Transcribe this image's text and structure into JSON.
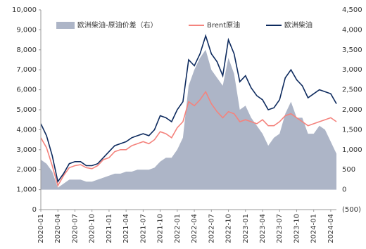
{
  "chart_data": {
    "type": "line",
    "categories": [
      "2020-01",
      null,
      null,
      "2020-04",
      null,
      null,
      "2020-07",
      null,
      null,
      "2020-10",
      null,
      null,
      "2021-01",
      null,
      null,
      "2021-04",
      null,
      null,
      "2021-07",
      null,
      null,
      "2021-10",
      null,
      null,
      "2022-01",
      null,
      null,
      "2022-04",
      null,
      null,
      "2022-07",
      null,
      null,
      "2022-10",
      null,
      null,
      "2023-01",
      null,
      null,
      "2023-04",
      null,
      null,
      "2023-07",
      null,
      null,
      "2023-10",
      null,
      null,
      "2024-01",
      null,
      null,
      "2024-04",
      null
    ],
    "series": [
      {
        "name": "欧洲柴油-原油价差（右）",
        "kind": "area",
        "axis": "y2",
        "color": "#adb5c7",
        "values": [
          750,
          650,
          450,
          50,
          150,
          250,
          250,
          250,
          200,
          200,
          250,
          300,
          350,
          400,
          400,
          450,
          450,
          500,
          500,
          500,
          550,
          700,
          800,
          800,
          1000,
          1300,
          2600,
          3000,
          3300,
          3500,
          3000,
          2800,
          2600,
          3300,
          2900,
          2000,
          2100,
          1800,
          1600,
          1400,
          1100,
          1300,
          1400,
          1900,
          2200,
          1800,
          1800,
          1400,
          1400,
          1600,
          1500,
          1200,
          900
        ]
      },
      {
        "name": "Brent原油",
        "kind": "line",
        "color": "#f4837d",
        "values": [
          3600,
          3100,
          2200,
          1200,
          1700,
          2100,
          2200,
          2250,
          2100,
          2050,
          2200,
          2500,
          2600,
          2900,
          3000,
          3000,
          3200,
          3300,
          3400,
          3300,
          3500,
          3900,
          3800,
          3600,
          4100,
          4400,
          5400,
          5200,
          5500,
          5900,
          5300,
          4900,
          4600,
          4900,
          4800,
          4400,
          4500,
          4400,
          4300,
          4500,
          4200,
          4200,
          4400,
          4700,
          4800,
          4600,
          4400,
          4200,
          4300,
          4400,
          4500,
          4600,
          4400
        ]
      },
      {
        "name": "欧洲柴油",
        "kind": "line",
        "color": "#0d2a5e",
        "values": [
          4300,
          3700,
          2700,
          1400,
          1800,
          2300,
          2400,
          2400,
          2200,
          2200,
          2300,
          2600,
          2900,
          3200,
          3300,
          3400,
          3600,
          3700,
          3800,
          3700,
          4000,
          4700,
          4600,
          4400,
          5000,
          5400,
          7500,
          7200,
          7800,
          8700,
          7800,
          7400,
          6700,
          8500,
          7800,
          6400,
          6700,
          6100,
          5700,
          5500,
          5000,
          5100,
          5500,
          6600,
          7000,
          6500,
          6200,
          5600,
          5800,
          6000,
          5900,
          5800,
          5300
        ]
      }
    ],
    "ylim": [
      0,
      10000
    ],
    "yticks": [
      0,
      {
        "value": 1000,
        "label": "1,000"
      },
      {
        "value": 2000,
        "label": "2,000"
      },
      {
        "value": 3000,
        "label": "3,000"
      },
      {
        "value": 4000,
        "label": "4,000"
      },
      {
        "value": 5000,
        "label": "5,000"
      },
      {
        "value": 6000,
        "label": "6,000"
      },
      {
        "value": 7000,
        "label": "7,000"
      },
      {
        "value": 8000,
        "label": "8,000"
      },
      {
        "value": 9000,
        "label": "9,000"
      },
      {
        "value": 10000,
        "label": "10,000"
      }
    ],
    "y2lim": [
      -500,
      4500
    ],
    "y2ticks": [
      {
        "value": -500,
        "label": "(500)",
        "color": "#e0302a"
      },
      0,
      500,
      {
        "value": 1000,
        "label": "1,000"
      },
      {
        "value": 1500,
        "label": "1,500"
      },
      {
        "value": 2000,
        "label": "2,000"
      },
      {
        "value": 2500,
        "label": "2,500"
      },
      {
        "value": 3000,
        "label": "3,000"
      },
      {
        "value": 3500,
        "label": "3,500"
      },
      {
        "value": 4000,
        "label": "4,000"
      },
      {
        "value": 4500,
        "label": "4,500"
      }
    ],
    "legend": "top"
  }
}
